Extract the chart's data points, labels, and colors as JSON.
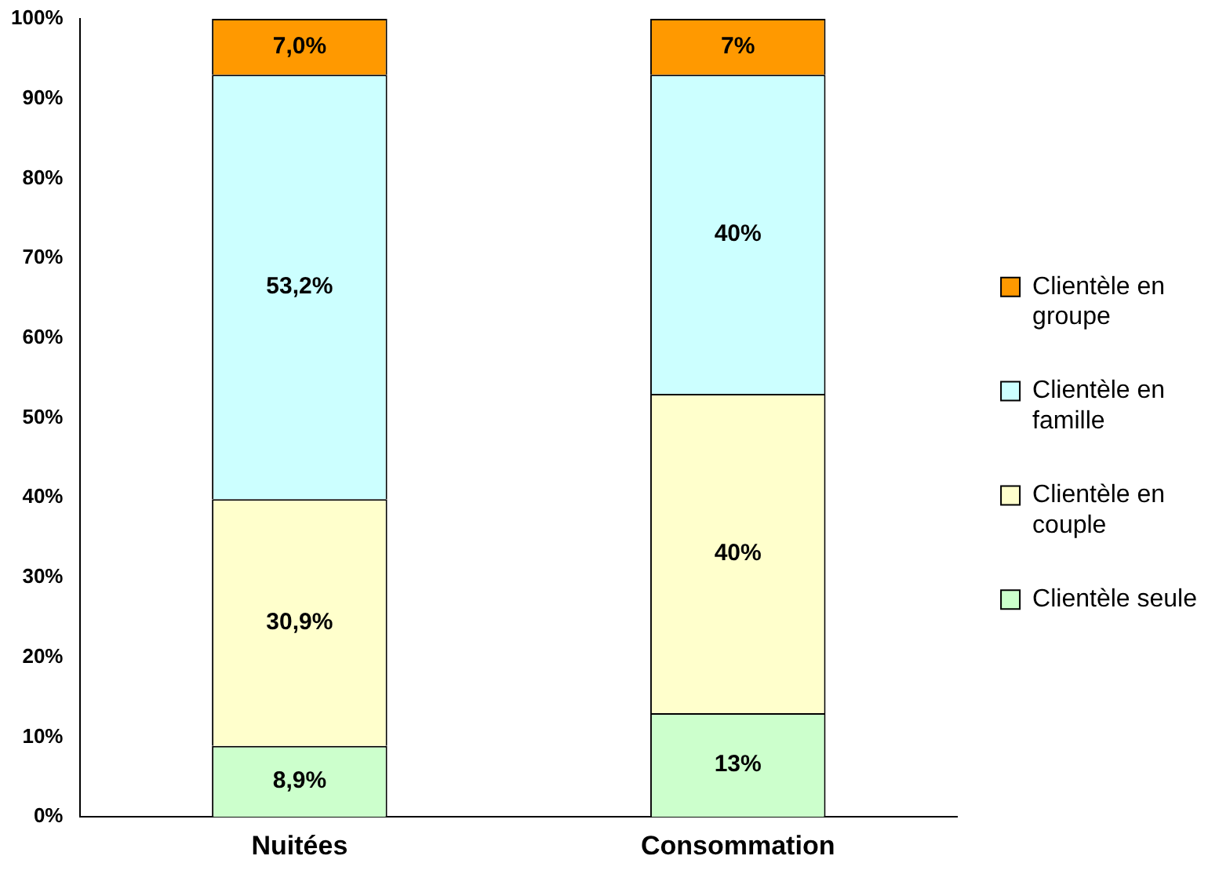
{
  "chart_data": {
    "type": "bar",
    "stacked": true,
    "categories": [
      "Nuitées",
      "Consommation"
    ],
    "series": [
      {
        "name": "Clientèle seule",
        "color": "#ccffcc",
        "values": [
          8.9,
          13
        ],
        "value_labels": [
          "8,9%",
          "13%"
        ]
      },
      {
        "name": "Clientèle en couple",
        "color": "#ffffcc",
        "values": [
          30.9,
          40
        ],
        "value_labels": [
          "30,9%",
          "40%"
        ]
      },
      {
        "name": "Clientèle en famille",
        "color": "#ccffff",
        "values": [
          53.2,
          40
        ],
        "value_labels": [
          "53,2%",
          "40%"
        ]
      },
      {
        "name": "Clientèle en groupe",
        "color": "#ff9900",
        "values": [
          7.0,
          7
        ],
        "value_labels": [
          "7,0%",
          "7%"
        ]
      }
    ],
    "ylim": [
      0,
      100
    ],
    "yticks": [
      {
        "value": 0,
        "label": "0%"
      },
      {
        "value": 10,
        "label": "10%"
      },
      {
        "value": 20,
        "label": "20%"
      },
      {
        "value": 30,
        "label": "30%"
      },
      {
        "value": 40,
        "label": "40%"
      },
      {
        "value": 50,
        "label": "50%"
      },
      {
        "value": 60,
        "label": "60%"
      },
      {
        "value": 70,
        "label": "70%"
      },
      {
        "value": 80,
        "label": "80%"
      },
      {
        "value": 90,
        "label": "90%"
      },
      {
        "value": 100,
        "label": "100%"
      }
    ],
    "grid": false,
    "legend": "right"
  }
}
